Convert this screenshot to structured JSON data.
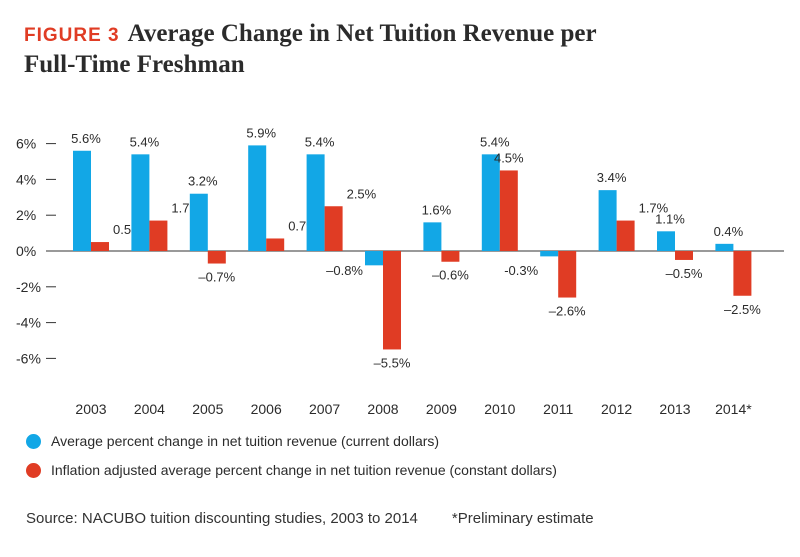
{
  "figure_label": "FIGURE 3",
  "title_line1": "Average Change in Net Tuition Revenue per",
  "title_line2": "Full-Time Freshman",
  "colors": {
    "current": "#12a7e6",
    "adjusted": "#e03c24",
    "title_accent": "#e03c24"
  },
  "chart_data": {
    "type": "bar",
    "categories": [
      "2003",
      "2004",
      "2005",
      "2006",
      "2007",
      "2008",
      "2009",
      "2010",
      "2011",
      "2012",
      "2013",
      "2014*"
    ],
    "series": [
      {
        "name": "Average percent change in net tuition revenue (current dollars)",
        "values": [
          5.6,
          5.4,
          3.2,
          5.9,
          5.4,
          -0.8,
          1.6,
          5.4,
          -0.3,
          3.4,
          1.1,
          0.4
        ],
        "labels": [
          "5.6%",
          "5.4%",
          "3.2%",
          "5.9%",
          "5.4%",
          "–0.8%",
          "1.6%",
          "5.4%",
          "-0.3%",
          "3.4%",
          "1.1%",
          "0.4%"
        ]
      },
      {
        "name": "Inflation adjusted average percent change in net tuition revenue (constant dollars)",
        "values": [
          0.5,
          1.7,
          -0.7,
          0.7,
          2.5,
          -5.5,
          -0.6,
          4.5,
          -2.6,
          1.7,
          -0.5,
          -2.5
        ],
        "labels": [
          "0.5%",
          "1.7%",
          "–0.7%",
          "0.7%",
          "2.5%",
          "–5.5%",
          "–0.6%",
          "4.5%",
          "–2.6%",
          "1.7%",
          "–0.5%",
          "–2.5%"
        ]
      }
    ],
    "yticks": [
      6,
      4,
      2,
      0,
      -2,
      -4,
      -6
    ],
    "ytick_labels": [
      "6%",
      "4%",
      "2%",
      "0%",
      "-2%",
      "-4%",
      "-6%"
    ],
    "ylim": [
      -6,
      6
    ],
    "legend_position": "bottom-left"
  },
  "source_text": "Source: NACUBO tuition discounting studies, 2003 to 2014",
  "footnote": "*Preliminary estimate"
}
